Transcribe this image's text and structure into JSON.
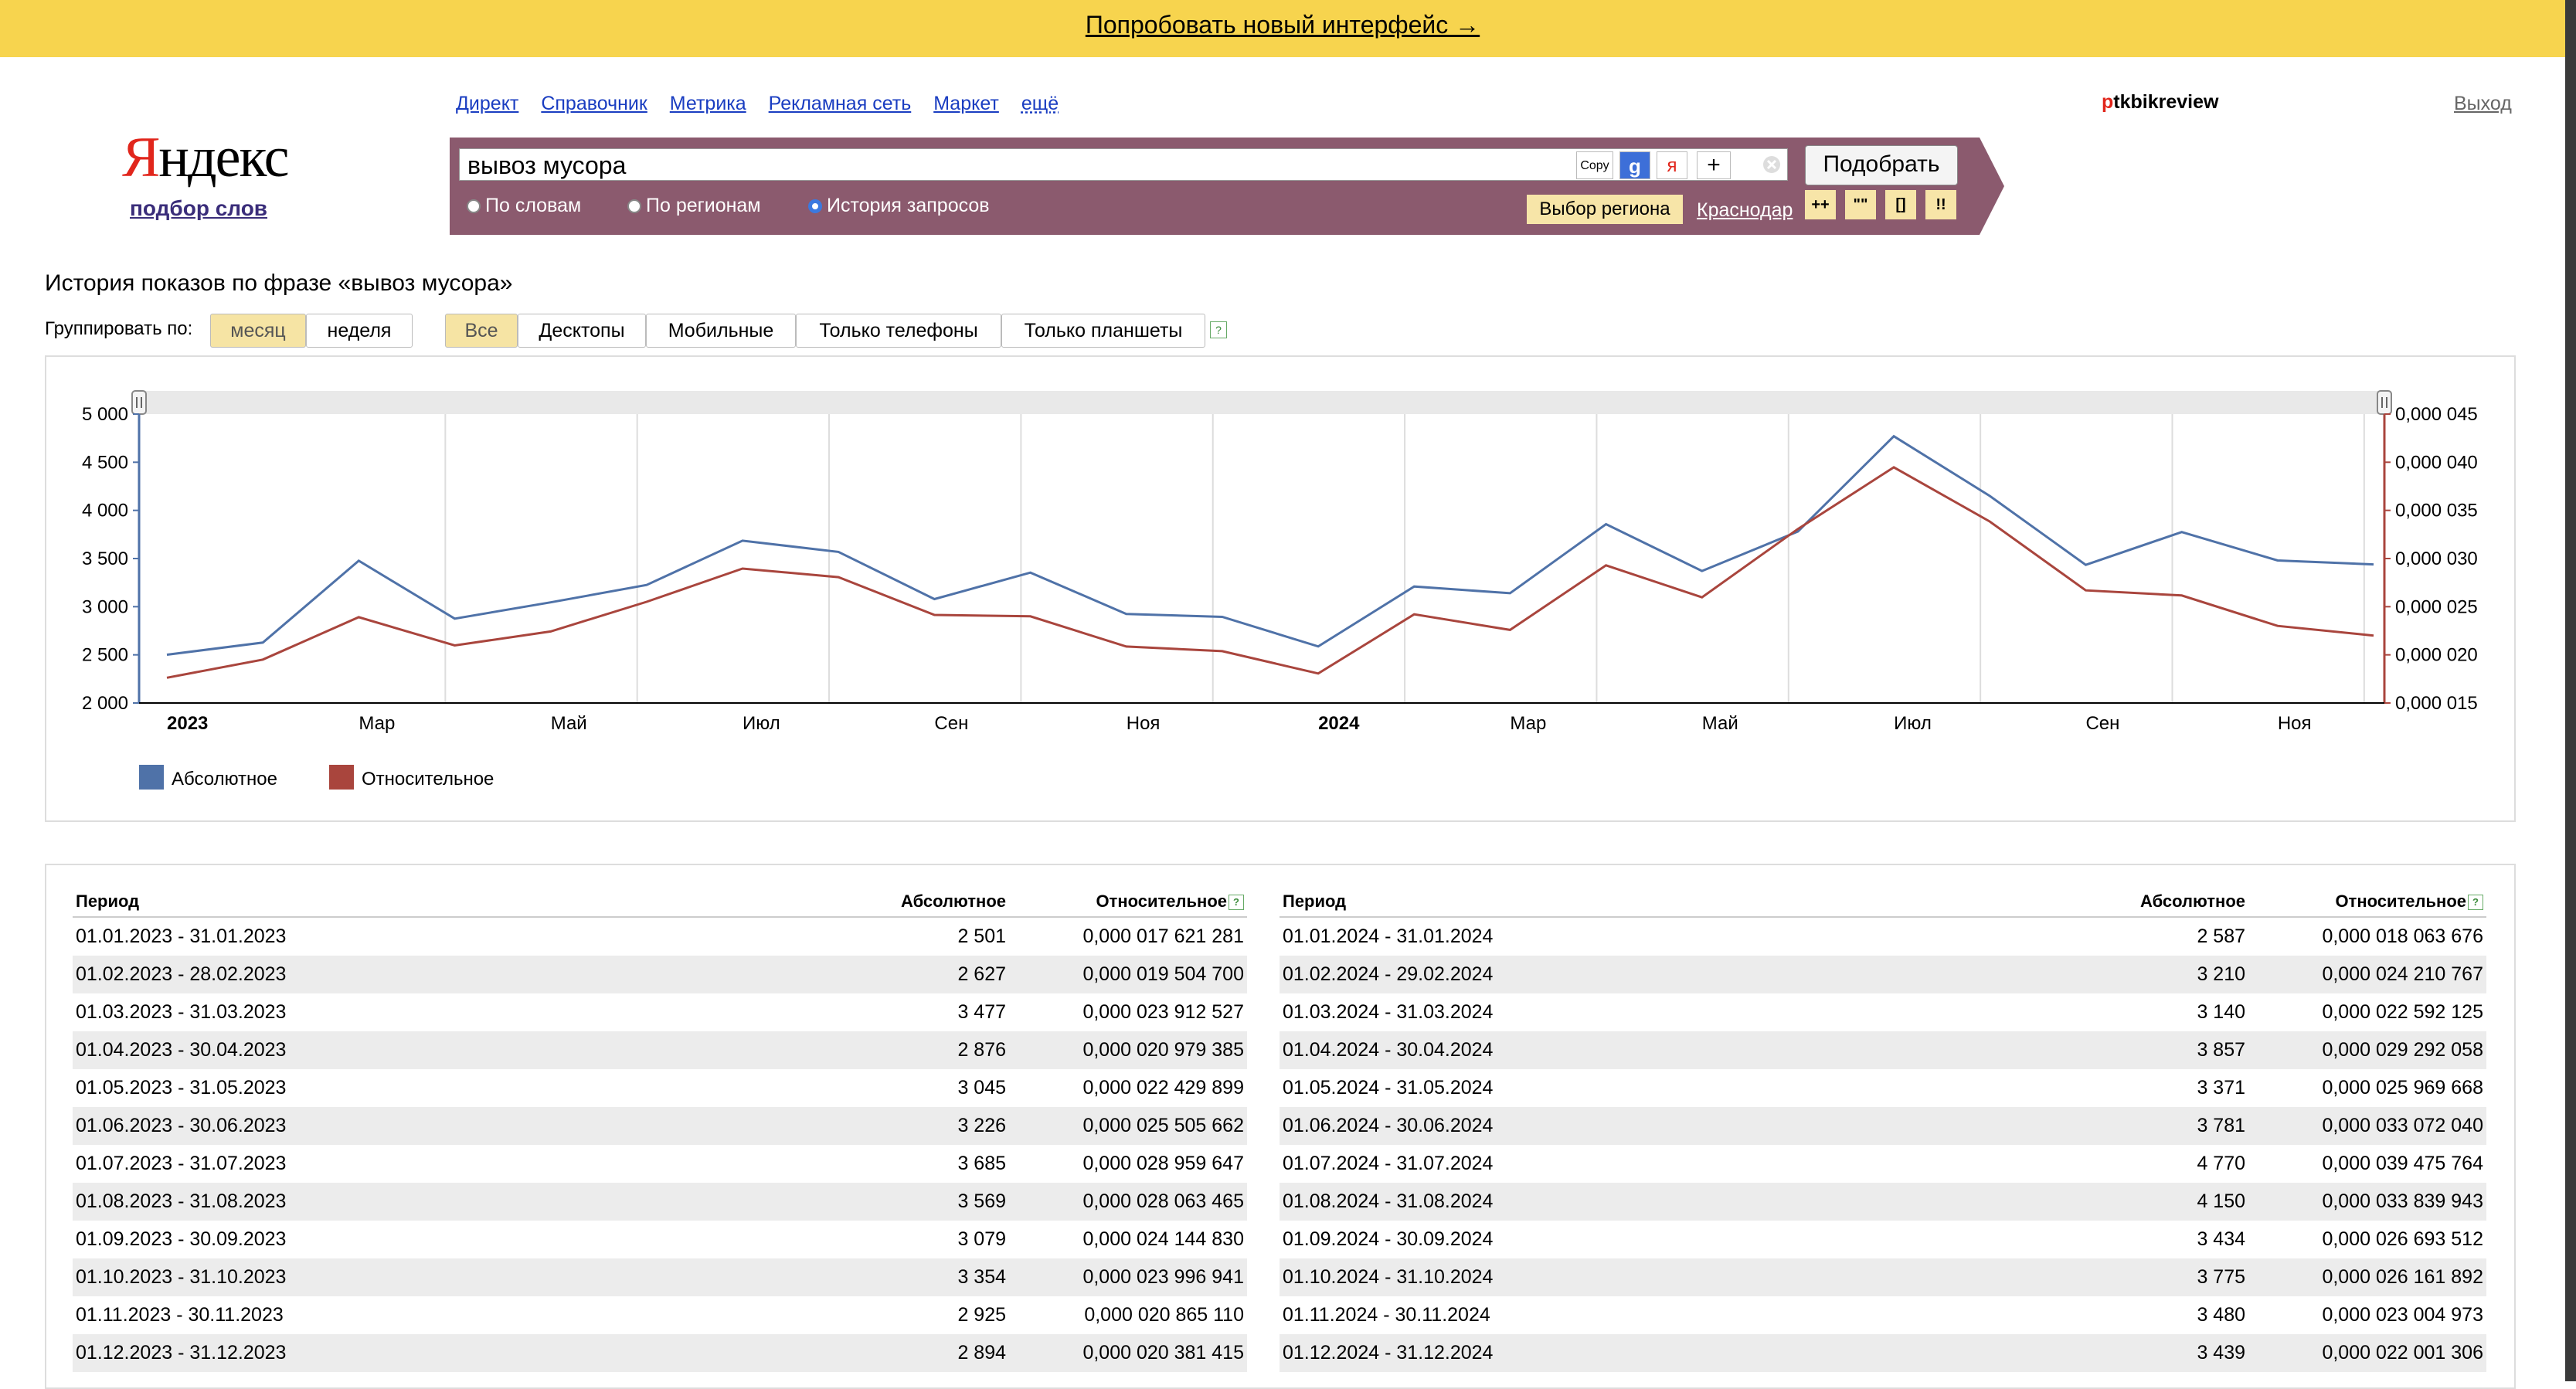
{
  "banner": {
    "text": "Попробовать новый интерфейс →"
  },
  "logo": {
    "text_red": "Я",
    "text_rest": "ндекс",
    "sub": "подбор слов"
  },
  "nav": {
    "items": [
      "Директ",
      "Справочник",
      "Метрика",
      "Рекламная сеть",
      "Маркет",
      "ещё"
    ]
  },
  "user": {
    "first": "p",
    "rest": "tkbikreview",
    "logout": "Выход"
  },
  "search": {
    "query": "вывоз мусора",
    "copy_label": "Copy",
    "google_label": "g",
    "yandex_label": "я",
    "plus_label": "+",
    "submit": "Подобрать",
    "modes": [
      "По словам",
      "По регионам",
      "История запросов"
    ],
    "selected_mode": "История запросов",
    "region_button": "Выбор региона",
    "region": "Краснодар",
    "operators": [
      "++",
      "\"\"",
      "[]",
      "!!"
    ]
  },
  "chart_header": {
    "title": "История показов по фразе «вывоз мусора»",
    "group_label": "Группировать по:",
    "group_options": [
      "месяц",
      "неделя"
    ],
    "group_selected": "месяц",
    "device_options": [
      "Все",
      "Десктопы",
      "Мобильные",
      "Только телефоны",
      "Только планшеты"
    ],
    "device_selected": "Все",
    "help": "?"
  },
  "chart_data": {
    "type": "line",
    "x_labels": [
      "2023",
      "Мар",
      "Май",
      "Июл",
      "Сен",
      "Ноя",
      "2024",
      "Мар",
      "Май",
      "Июл",
      "Сен",
      "Ноя"
    ],
    "y_left_ticks": [
      "5 000",
      "4 500",
      "4 000",
      "3 500",
      "3 000",
      "2 500",
      "2 000"
    ],
    "y_left_range": [
      2000,
      5000
    ],
    "y_right_ticks": [
      "0,000 045",
      "0,000 040",
      "0,000 035",
      "0,000 030",
      "0,000 025",
      "0,000 020",
      "0,000 015"
    ],
    "y_right_range": [
      1.5e-05,
      4.5e-05
    ],
    "series": [
      {
        "name": "Абсолютное",
        "color": "#4f72a8",
        "axis": "left",
        "values": [
          2501,
          2627,
          3477,
          2876,
          3045,
          3226,
          3685,
          3569,
          3079,
          3354,
          2925,
          2894,
          2587,
          3210,
          3140,
          3857,
          3371,
          3781,
          4770,
          4150,
          3434,
          3775,
          3480,
          3439
        ]
      },
      {
        "name": "Относительное",
        "color": "#a9453d",
        "axis": "right",
        "values": [
          1.7621281e-05,
          1.95047e-05,
          2.3912527e-05,
          2.0979385e-05,
          2.2429899e-05,
          2.5505662e-05,
          2.8959647e-05,
          2.8063465e-05,
          2.414483e-05,
          2.3996941e-05,
          2.086511e-05,
          2.0381415e-05,
          1.8063676e-05,
          2.4210767e-05,
          2.2592125e-05,
          2.9292058e-05,
          2.5969668e-05,
          3.307204e-05,
          3.9475764e-05,
          3.3839943e-05,
          2.6693512e-05,
          2.6161892e-05,
          2.3004973e-05,
          2.2001306e-05
        ]
      }
    ],
    "grid": true,
    "legend_position": "bottom-left"
  },
  "table": {
    "headers": {
      "period": "Период",
      "absolute": "Абсолютное",
      "relative": "Относительное"
    },
    "left": [
      [
        "01.01.2023 - 31.01.2023",
        "2 501",
        "0,000 017 621 281"
      ],
      [
        "01.02.2023 - 28.02.2023",
        "2 627",
        "0,000 019 504 700"
      ],
      [
        "01.03.2023 - 31.03.2023",
        "3 477",
        "0,000 023 912 527"
      ],
      [
        "01.04.2023 - 30.04.2023",
        "2 876",
        "0,000 020 979 385"
      ],
      [
        "01.05.2023 - 31.05.2023",
        "3 045",
        "0,000 022 429 899"
      ],
      [
        "01.06.2023 - 30.06.2023",
        "3 226",
        "0,000 025 505 662"
      ],
      [
        "01.07.2023 - 31.07.2023",
        "3 685",
        "0,000 028 959 647"
      ],
      [
        "01.08.2023 - 31.08.2023",
        "3 569",
        "0,000 028 063 465"
      ],
      [
        "01.09.2023 - 30.09.2023",
        "3 079",
        "0,000 024 144 830"
      ],
      [
        "01.10.2023 - 31.10.2023",
        "3 354",
        "0,000 023 996 941"
      ],
      [
        "01.11.2023 - 30.11.2023",
        "2 925",
        "0,000 020 865 110"
      ],
      [
        "01.12.2023 - 31.12.2023",
        "2 894",
        "0,000 020 381 415"
      ]
    ],
    "right": [
      [
        "01.01.2024 - 31.01.2024",
        "2 587",
        "0,000 018 063 676"
      ],
      [
        "01.02.2024 - 29.02.2024",
        "3 210",
        "0,000 024 210 767"
      ],
      [
        "01.03.2024 - 31.03.2024",
        "3 140",
        "0,000 022 592 125"
      ],
      [
        "01.04.2024 - 30.04.2024",
        "3 857",
        "0,000 029 292 058"
      ],
      [
        "01.05.2024 - 31.05.2024",
        "3 371",
        "0,000 025 969 668"
      ],
      [
        "01.06.2024 - 30.06.2024",
        "3 781",
        "0,000 033 072 040"
      ],
      [
        "01.07.2024 - 31.07.2024",
        "4 770",
        "0,000 039 475 764"
      ],
      [
        "01.08.2024 - 31.08.2024",
        "4 150",
        "0,000 033 839 943"
      ],
      [
        "01.09.2024 - 30.09.2024",
        "3 434",
        "0,000 026 693 512"
      ],
      [
        "01.10.2024 - 31.10.2024",
        "3 775",
        "0,000 026 161 892"
      ],
      [
        "01.11.2024 - 30.11.2024",
        "3 480",
        "0,000 023 004 973"
      ],
      [
        "01.12.2024 - 31.12.2024",
        "3 439",
        "0,000 022 001 306"
      ]
    ]
  }
}
